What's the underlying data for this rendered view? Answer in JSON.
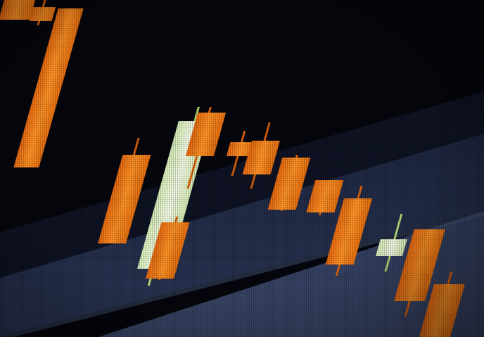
{
  "image": {
    "subject": "candlestick-chart-screen-photo",
    "colors": {
      "background_dark": "#05060d",
      "band_blue": "#2a3552",
      "bearish_fill": "#ff8a1e",
      "bearish_edge": "#e0620a",
      "bullish_fill": "#e9f6d2",
      "bullish_wick": "#b8e07a"
    }
  }
}
